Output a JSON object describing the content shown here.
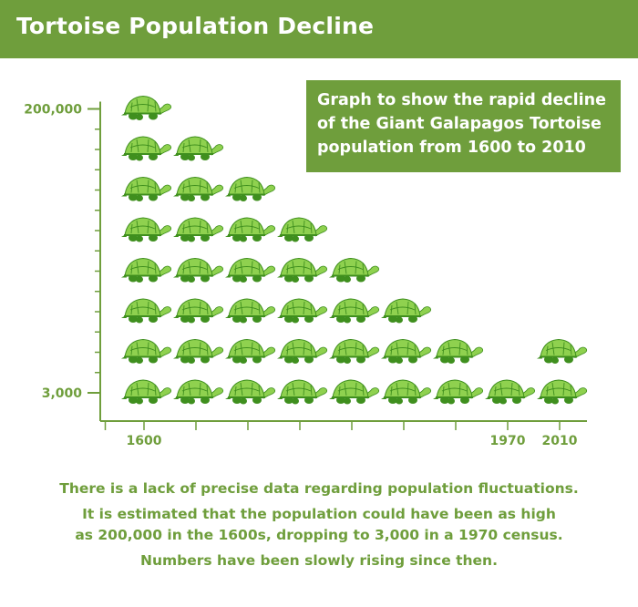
{
  "header": {
    "title": "Tortoise Population Decline"
  },
  "info_box": {
    "lines": [
      "Graph to show the rapid decline",
      "of the Giant Galapagos Tortoise",
      "population from 1600 to 2010"
    ]
  },
  "footer": {
    "lines": [
      "There is a lack of precise data regarding population fluctuations.",
      "It is estimated that the population could have been as high",
      "as 200,000 in the 1600s, dropping to 3,000 in a 1970 census.",
      "Numbers have been slowly rising since then."
    ]
  },
  "colors": {
    "accent": "#6f9e3c",
    "turtle_light": "#8fd14f",
    "turtle_dark": "#3f8f1e"
  },
  "icon": "tortoise-icon",
  "chart_data": {
    "type": "bar",
    "style": "pictogram",
    "title": "",
    "xlabel": "",
    "ylabel": "",
    "y_tick_labels": [
      "200,000",
      "3,000"
    ],
    "x_tick_labels": [
      "1600",
      "",
      "",
      "",
      "",
      "",
      "",
      "1970",
      "2010"
    ],
    "categories": [
      "1600",
      "",
      "",
      "",
      "",
      "",
      "",
      "1970",
      "2010"
    ],
    "values": [
      8,
      7,
      6,
      5,
      4,
      3,
      2,
      1,
      2
    ],
    "ylim": [
      0,
      8
    ],
    "grid": false
  }
}
